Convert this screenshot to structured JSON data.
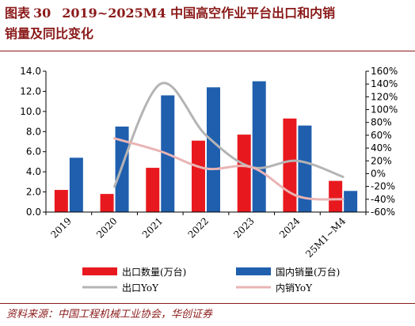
{
  "title": {
    "figure_label": "图表",
    "figure_number": "30",
    "text_line1": "2019~2025M4 中国高空作业平台出口和内销",
    "text_line2": "销量及同比变化"
  },
  "source": "资料来源：中国工程机械工业协会，华创证券",
  "colors": {
    "title": "#8b1a1a",
    "export_bar": "#e8191e",
    "domestic_bar": "#1f5fae",
    "export_yoy": "#b4b4b4",
    "domestic_yoy": "#eab4b4"
  },
  "chart_data": {
    "type": "bar",
    "categories": [
      "2019",
      "2020",
      "2021",
      "2022",
      "2023",
      "2024",
      "25M1~M4"
    ],
    "series": [
      {
        "name": "出口数量(万台)",
        "type": "bar",
        "axis": "left",
        "values": [
          2.2,
          1.8,
          4.4,
          7.1,
          7.7,
          9.3,
          3.1
        ]
      },
      {
        "name": "国内销量(万台)",
        "type": "bar",
        "axis": "left",
        "values": [
          5.4,
          8.5,
          11.6,
          12.4,
          13.0,
          8.6,
          2.1
        ]
      },
      {
        "name": "出口YoY",
        "type": "line",
        "axis": "right",
        "values": [
          null,
          -20,
          140,
          60,
          10,
          20,
          -5
        ]
      },
      {
        "name": "内销YoY",
        "type": "line",
        "axis": "right",
        "values": [
          null,
          55,
          35,
          8,
          10,
          -35,
          -40
        ]
      }
    ],
    "y_left": {
      "min": 0,
      "max": 14,
      "step": 2,
      "tick_labels": [
        "0.0",
        "2.0",
        "4.0",
        "6.0",
        "8.0",
        "10.0",
        "12.0",
        "14.0"
      ]
    },
    "y_right": {
      "min": -60,
      "max": 160,
      "step": 20,
      "tick_labels": [
        "-60%",
        "-40%",
        "-20%",
        "0%",
        "20%",
        "40%",
        "60%",
        "80%",
        "100%",
        "120%",
        "140%",
        "160%"
      ]
    },
    "grid": false,
    "legend_position": "bottom"
  }
}
